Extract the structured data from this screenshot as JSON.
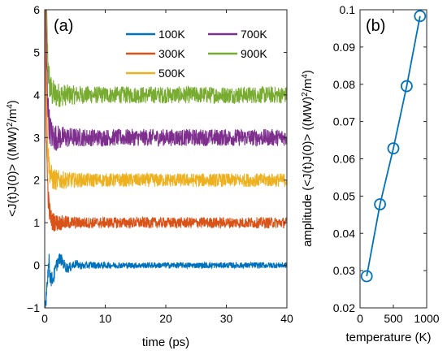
{
  "chart_data": [
    {
      "type": "line",
      "panel_label": "(a)",
      "xlabel": "time (ps)",
      "ylabel": "<J(t)J(0)> ((MW)^2/m^4)",
      "xlim": [
        0,
        40
      ],
      "ylim": [
        -1,
        6
      ],
      "xticks": [
        "0",
        "10",
        "20",
        "30",
        "40"
      ],
      "yticks": [
        "-1",
        "0",
        "1",
        "2",
        "3",
        "4",
        "5",
        "6"
      ],
      "legend_placement": "top-right",
      "series": [
        {
          "name": "100K",
          "color": "#0072BD",
          "plateau": 0.0
        },
        {
          "name": "300K",
          "color": "#D95319",
          "plateau": 1.0
        },
        {
          "name": "500K",
          "color": "#EDB120",
          "plateau": 2.0
        },
        {
          "name": "700K",
          "color": "#7E2F8E",
          "plateau": 3.0
        },
        {
          "name": "900K",
          "color": "#77AC30",
          "plateau": 4.0
        }
      ]
    },
    {
      "type": "line",
      "panel_label": "(b)",
      "xlabel": "temperature (K)",
      "ylabel": "amplitude (<J(t)J(0)> ((MW)^2/m^4)",
      "xlim": [
        0,
        1000
      ],
      "ylim": [
        0.02,
        0.1
      ],
      "xticks": [
        "0",
        "500",
        "1000"
      ],
      "yticks": [
        "0.02",
        "0.03",
        "0.04",
        "0.05",
        "0.06",
        "0.07",
        "0.08",
        "0.09",
        "0.1"
      ],
      "marker": "circle",
      "color": "#0072BD",
      "x": [
        100,
        300,
        500,
        700,
        900
      ],
      "y": [
        0.0285,
        0.0478,
        0.0628,
        0.0795,
        0.0983
      ]
    }
  ]
}
